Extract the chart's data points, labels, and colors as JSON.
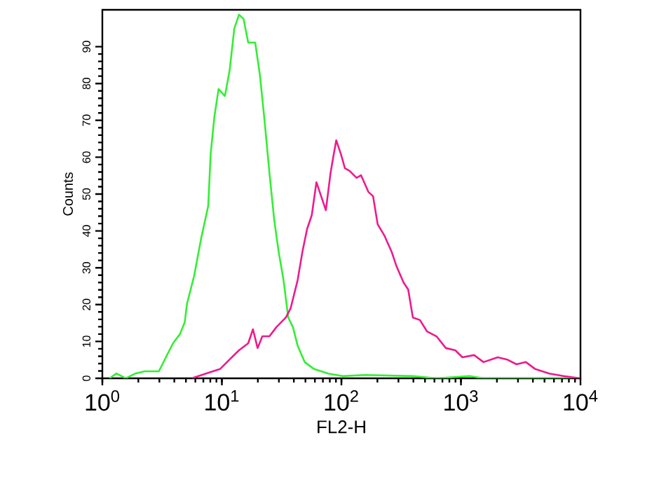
{
  "chart_data": {
    "type": "line",
    "xlabel": "FL2-H",
    "ylabel": "Counts",
    "log": "x",
    "xlim": [
      1,
      10000
    ],
    "ylim": [
      0,
      100
    ],
    "xticks": [
      {
        "value": 1,
        "label": "10$^{0}$"
      },
      {
        "value": 10,
        "label": "10$^{1}$"
      },
      {
        "value": 100,
        "label": "10$^{2}$"
      },
      {
        "value": 1000,
        "label": "10$^{3}$"
      },
      {
        "value": 10000,
        "label": "10$^{4}$"
      }
    ],
    "yticks": [
      0,
      10,
      20,
      30,
      40,
      50,
      60,
      70,
      80,
      90
    ],
    "grid": false,
    "marker": "none",
    "line_style": "solid",
    "series": [
      {
        "color": "#33ee33",
        "x": [
          1.15,
          1.31,
          1.57,
          1.89,
          2.26,
          2.97,
          3.4,
          3.9,
          4.46,
          4.89,
          5.11,
          5.86,
          6.71,
          7.69,
          8.05,
          8.65,
          9.38,
          10.6,
          11.6,
          12.7,
          13.9,
          15.2,
          16.6,
          19.0,
          20.8,
          22.8,
          25.0,
          27.4,
          29.9,
          32.8,
          35.9,
          39.3,
          43.0,
          49.3,
          59.1,
          77.6,
          102,
          160,
          396,
          624,
          1178,
          1545,
          9460
        ],
        "values": [
          0,
          1.3,
          0,
          1.3,
          1.9,
          1.9,
          5.7,
          9.5,
          12,
          15.2,
          20.3,
          27.8,
          38,
          46.8,
          60.8,
          70.9,
          78.5,
          76.6,
          83.5,
          94.9,
          98.7,
          97.5,
          91.1,
          91.1,
          82.3,
          69.6,
          55.7,
          43,
          34.2,
          26.6,
          16.5,
          13.9,
          8.9,
          4.4,
          2.5,
          1.3,
          0.6,
          0.9,
          0.6,
          0,
          0.6,
          0,
          0
        ]
      },
      {
        "color": "#ee1a8c",
        "x": [
          5.6,
          7.35,
          9.64,
          11.6,
          13.9,
          16.6,
          18.2,
          19.9,
          21.8,
          25.0,
          28.6,
          34.3,
          37.6,
          43.0,
          47.1,
          51.6,
          56.5,
          61.8,
          67.7,
          74.1,
          81.1,
          84.9,
          90.5,
          99.1,
          107,
          117,
          134,
          146,
          168,
          184,
          201,
          230,
          264,
          289,
          331,
          362,
          396,
          454,
          521,
          624,
          748,
          897,
          1028,
          1288,
          1545,
          2028,
          2432,
          2915,
          3493,
          4188,
          5495,
          7211,
          9908
        ],
        "values": [
          0,
          1.3,
          2.5,
          5.1,
          7.6,
          9.5,
          13.3,
          8.2,
          11.4,
          11.4,
          13.9,
          16.5,
          19,
          26.6,
          34.2,
          40.5,
          44.3,
          53.2,
          49.4,
          45.6,
          55.7,
          59.5,
          64.6,
          60.8,
          57,
          56.3,
          54.4,
          55.1,
          50.6,
          49.4,
          41.8,
          38.6,
          34.2,
          30.4,
          26,
          24.1,
          16.5,
          15.8,
          12.7,
          11.4,
          8.2,
          7.6,
          5.7,
          6.3,
          4.4,
          5.7,
          5.1,
          3.8,
          4.4,
          2.5,
          1.3,
          0.6,
          0
        ]
      }
    ]
  }
}
